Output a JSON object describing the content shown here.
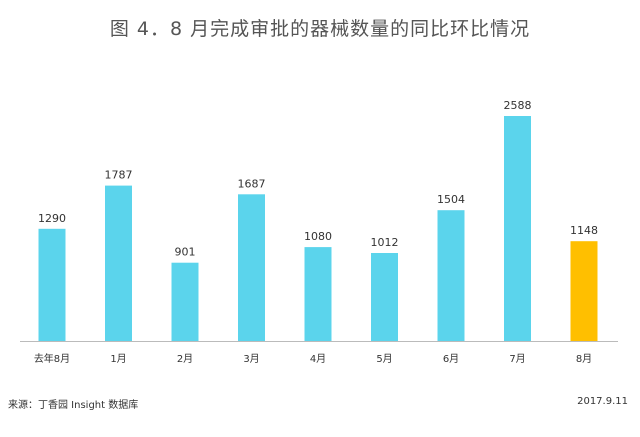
{
  "chart_data": {
    "type": "bar",
    "title": "图 4．8 月完成审批的器械数量的同比环比情况",
    "categories": [
      "去年8月",
      "1月",
      "2月",
      "3月",
      "4月",
      "5月",
      "6月",
      "7月",
      "8月"
    ],
    "values": [
      1290,
      1787,
      901,
      1687,
      1080,
      1012,
      1504,
      2588,
      1148
    ],
    "ylim": [
      0,
      2588
    ],
    "grid": false,
    "legend": "none",
    "colors": {
      "default": "#5bd4ec",
      "highlight": "#ffbf00",
      "baseline": "#bbbbbb",
      "tick_label": "#333333",
      "value_label": "#333333"
    },
    "highlight_index": 8
  },
  "footer": {
    "source": "来源：丁香园 Insight 数据库",
    "date": "2017.9.11"
  }
}
